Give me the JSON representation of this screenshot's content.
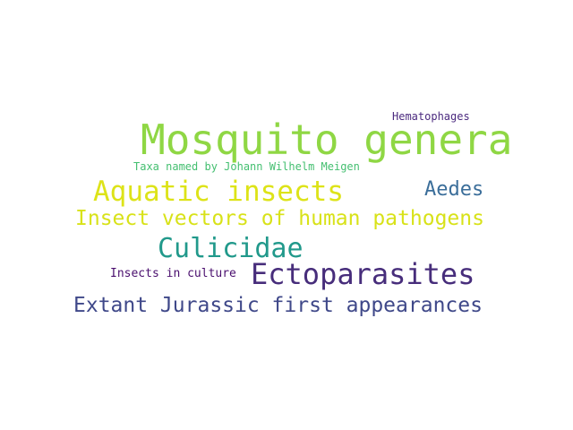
{
  "words": [
    {
      "text": "Hematophages",
      "color": "#4b2a7f"
    },
    {
      "text": "Mosquito genera",
      "color": "#8fd744"
    },
    {
      "text": "Taxa named by Johann Wilhelm Meigen",
      "color": "#44bf70"
    },
    {
      "text": "Aquatic insects",
      "color": "#dde318"
    },
    {
      "text": "Aedes",
      "color": "#3b6e9a"
    },
    {
      "text": "Insect vectors of human pathogens",
      "color": "#d8e219"
    },
    {
      "text": "Culicidae",
      "color": "#21998b"
    },
    {
      "text": "Insects in culture",
      "color": "#4a0f6e"
    },
    {
      "text": "Ectoparasites",
      "color": "#472d7b"
    },
    {
      "text": "Extant Jurassic first appearances",
      "color": "#3f4889"
    }
  ]
}
